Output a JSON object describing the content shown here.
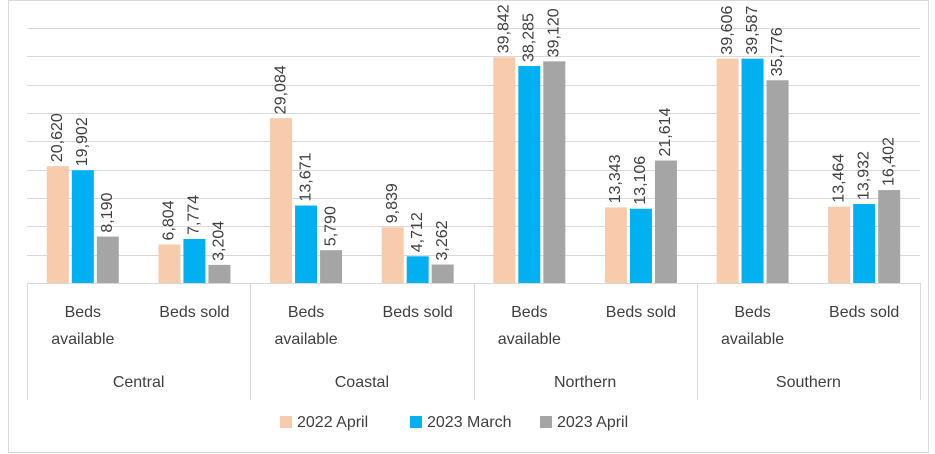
{
  "chart_data": {
    "type": "bar",
    "groups": [
      "Central",
      "Coastal",
      "Northern",
      "Southern"
    ],
    "categories": [
      "Beds available",
      "Beds sold",
      "Beds available",
      "Beds sold",
      "Beds available",
      "Beds sold",
      "Beds available",
      "Beds sold"
    ],
    "series": [
      {
        "name": "2022 April",
        "color": "#f8cbad",
        "values": [
          20620,
          6804,
          29084,
          9839,
          39842,
          13343,
          39606,
          13464
        ],
        "value_labels": [
          "20,620",
          "6,804",
          "29,084",
          "9,839",
          "39,842",
          "13,343",
          "39,606",
          "13,464"
        ]
      },
      {
        "name": "2023 March",
        "color": "#00b0f0",
        "values": [
          19902,
          7774,
          13671,
          4712,
          38285,
          13106,
          39587,
          13932
        ],
        "value_labels": [
          "19,902",
          "7,774",
          "13,671",
          "4,712",
          "38,285",
          "13,106",
          "39,587",
          "13,932"
        ]
      },
      {
        "name": "2023 April",
        "color": "#a5a5a5",
        "values": [
          8190,
          3204,
          5790,
          3262,
          39120,
          21614,
          35776,
          16402
        ],
        "value_labels": [
          "8,190",
          "3,204",
          "5,790",
          "3,262",
          "39,120",
          "21,614",
          "35,776",
          "16,402"
        ]
      }
    ],
    "ylim": [
      0,
      45000
    ],
    "yticks": [
      0,
      5000,
      10000,
      15000,
      20000,
      25000,
      30000,
      35000,
      40000,
      45000
    ],
    "grid": true,
    "legend": "bottom"
  }
}
